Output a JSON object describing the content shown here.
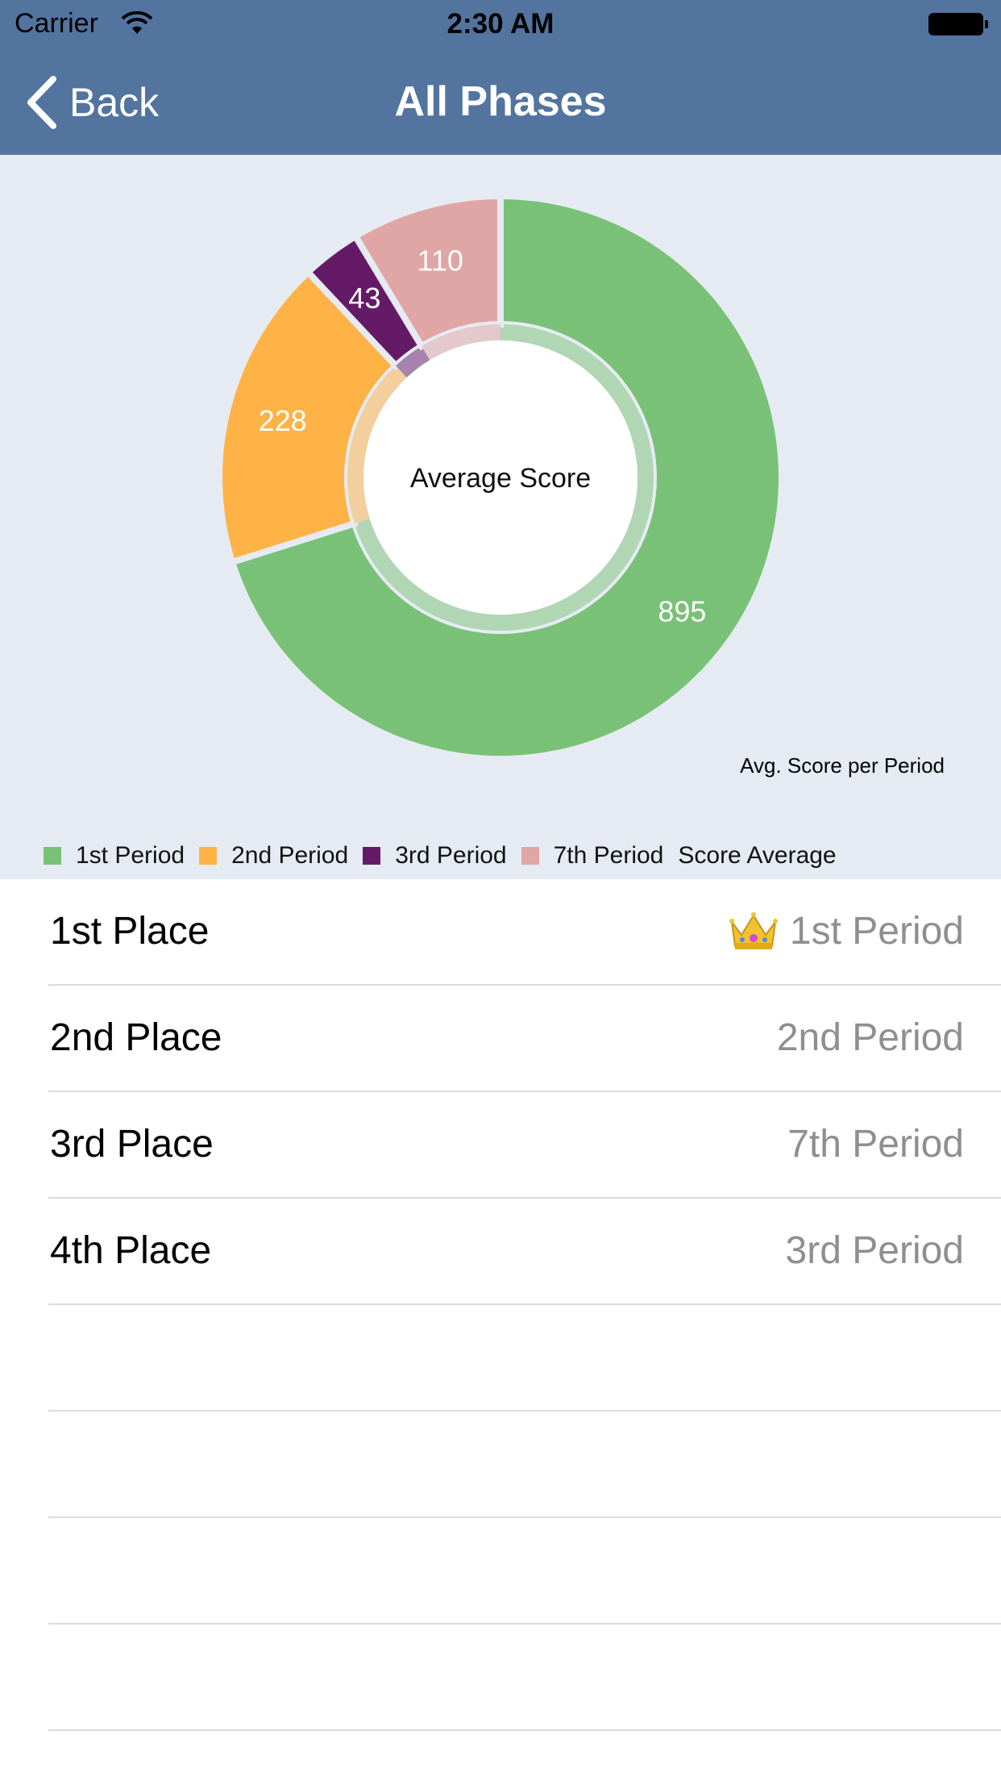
{
  "status_bar": {
    "carrier": "Carrier",
    "time": "2:30 AM"
  },
  "nav": {
    "back_label": "Back",
    "title": "All Phases"
  },
  "chart_data": {
    "type": "pie",
    "style": "donut",
    "center_text": "Average Score",
    "description": "Avg. Score per Period",
    "legend_title": "Score Average",
    "slices": [
      {
        "label": "1st Period",
        "value": 895,
        "color": "#79c176"
      },
      {
        "label": "2nd Period",
        "value": 228,
        "color": "#ffb347"
      },
      {
        "label": "3rd Period",
        "value": 43,
        "color": "#651a67"
      },
      {
        "label": "7th Period",
        "value": 110,
        "color": "#e0a5a5"
      }
    ]
  },
  "rankings": [
    {
      "place": "1st Place",
      "period": "1st Period",
      "crown": true
    },
    {
      "place": "2nd Place",
      "period": "2nd Period",
      "crown": false
    },
    {
      "place": "3rd Place",
      "period": "7th Period",
      "crown": false
    },
    {
      "place": "4th Place",
      "period": "3rd Period",
      "crown": false
    }
  ]
}
